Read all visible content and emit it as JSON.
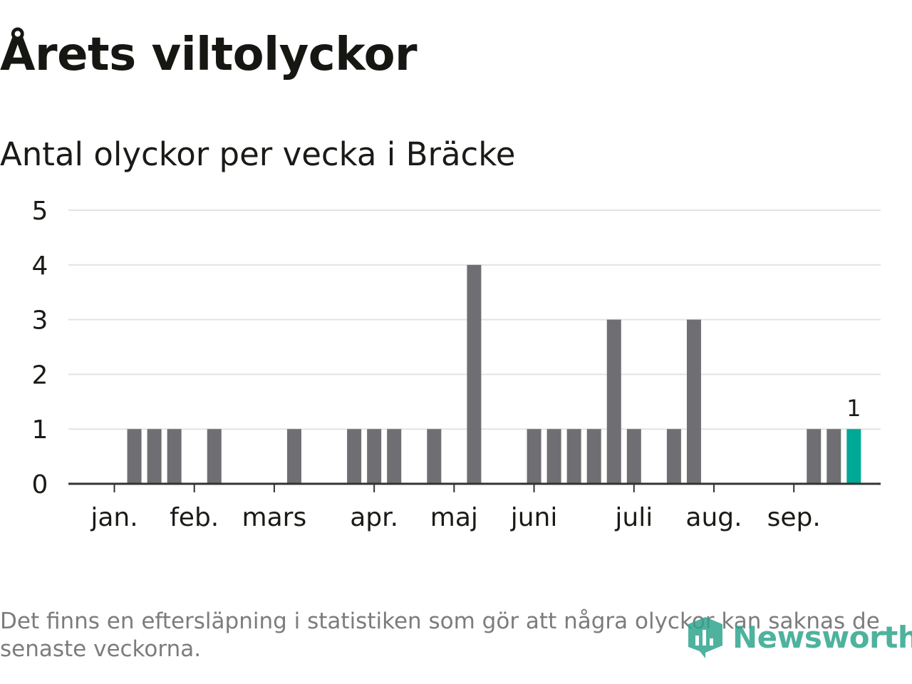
{
  "header": {
    "title": "Årets viltolyckor",
    "subtitle": "Antal olyckor per vecka i Bräcke"
  },
  "footnote": "Det finns en eftersläpning i statistiken som gör att några olyckor kan saknas de senaste veckorna.",
  "logo": {
    "text": "Newsworthy",
    "icon": "newsworthy-logo-icon"
  },
  "colors": {
    "bar": "#6f6e72",
    "highlight": "#00a896",
    "grid": "#e3e3e3",
    "axis": "#333333",
    "text": "#1a1a17"
  },
  "chart_data": {
    "type": "bar",
    "x_unit": "week",
    "x": [
      1,
      2,
      3,
      4,
      5,
      6,
      7,
      8,
      9,
      10,
      11,
      12,
      13,
      14,
      15,
      16,
      17,
      18,
      19,
      20,
      21,
      22,
      23,
      24,
      25,
      26,
      27,
      28,
      29,
      30,
      31,
      32,
      33,
      34,
      35,
      36,
      37,
      38
    ],
    "values": [
      0,
      1,
      1,
      1,
      0,
      1,
      0,
      0,
      0,
      1,
      0,
      0,
      1,
      1,
      1,
      0,
      1,
      0,
      4,
      0,
      0,
      1,
      1,
      1,
      1,
      3,
      1,
      0,
      1,
      3,
      0,
      0,
      0,
      0,
      0,
      1,
      1,
      1
    ],
    "highlight_index": 37,
    "highlight_label": "1",
    "ylim": [
      0,
      5
    ],
    "y_ticks": [
      0,
      1,
      2,
      3,
      4,
      5
    ],
    "month_ticks": [
      {
        "label": "jan.",
        "week": 1
      },
      {
        "label": "feb.",
        "week": 5
      },
      {
        "label": "mars",
        "week": 9
      },
      {
        "label": "apr.",
        "week": 14
      },
      {
        "label": "maj",
        "week": 18
      },
      {
        "label": "juni",
        "week": 22
      },
      {
        "label": "juli",
        "week": 27
      },
      {
        "label": "aug.",
        "week": 31
      },
      {
        "label": "sep.",
        "week": 35
      }
    ],
    "grid": true,
    "legend": "none"
  }
}
